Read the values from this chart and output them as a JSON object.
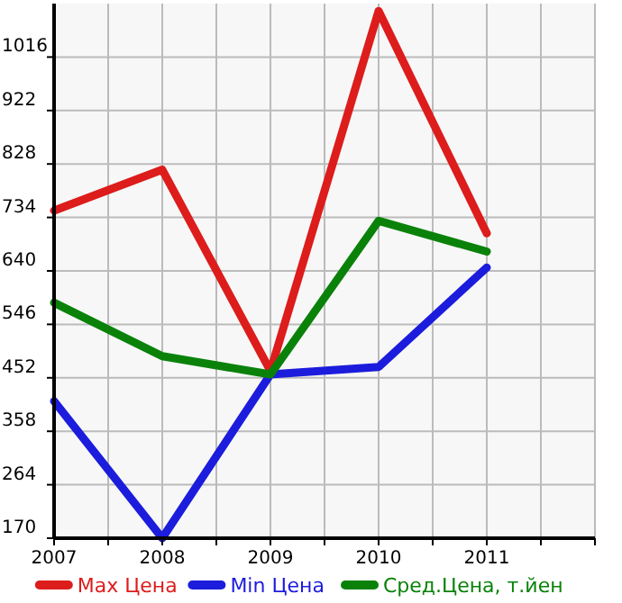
{
  "chart_data": {
    "type": "line",
    "x": [
      2007,
      2008,
      2009,
      2010,
      2011
    ],
    "xlim": [
      2007,
      2012
    ],
    "xticks": [
      2007,
      {
        "value": 2007.5,
        "label": null
      },
      2008,
      {
        "value": 2008.5,
        "label": null
      },
      2009,
      {
        "value": 2009.5,
        "label": null
      },
      2010,
      {
        "value": 2010.5,
        "label": null
      },
      2011,
      {
        "value": 2011.5,
        "label": null
      },
      {
        "value": 2012,
        "label": null
      }
    ],
    "ylim": [
      170,
      1110
    ],
    "yticks": [
      170,
      264,
      358,
      452,
      546,
      640,
      734,
      828,
      922,
      1016
    ],
    "grid": true,
    "legend": "bottom",
    "marker": "none",
    "line_style": "solid",
    "series": [
      {
        "name": "Max Цена",
        "color": "#dd1c1c",
        "values": [
          746,
          818,
          464,
          1097,
          706
        ]
      },
      {
        "name": "Min Цена",
        "color": "#1c1cdd",
        "values": [
          411,
          170,
          458,
          471,
          646
        ]
      },
      {
        "name": "Сред.Цена, т.йен",
        "color": "#0a820a",
        "values": [
          584,
          490,
          458,
          728,
          674
        ]
      }
    ]
  }
}
